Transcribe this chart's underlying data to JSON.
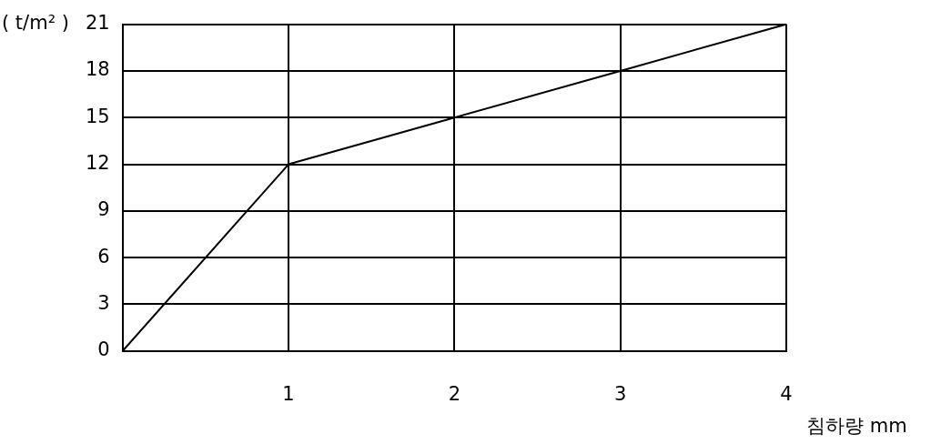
{
  "chart_data": {
    "type": "line",
    "xlabel": "침하량 mm",
    "ylabel": "( t/m² )",
    "x": [
      0,
      1,
      2,
      3,
      4
    ],
    "values": [
      0,
      12,
      15,
      18,
      21
    ],
    "color": "#000000",
    "marker": "none",
    "xlim": [
      0,
      4
    ],
    "xticks": [
      {
        "value": 0,
        "label": null
      },
      1,
      2,
      3,
      4
    ],
    "ylim": [
      0,
      21
    ],
    "yticks": [
      0,
      3,
      6,
      9,
      12,
      15,
      18,
      21
    ],
    "grid": true
  }
}
